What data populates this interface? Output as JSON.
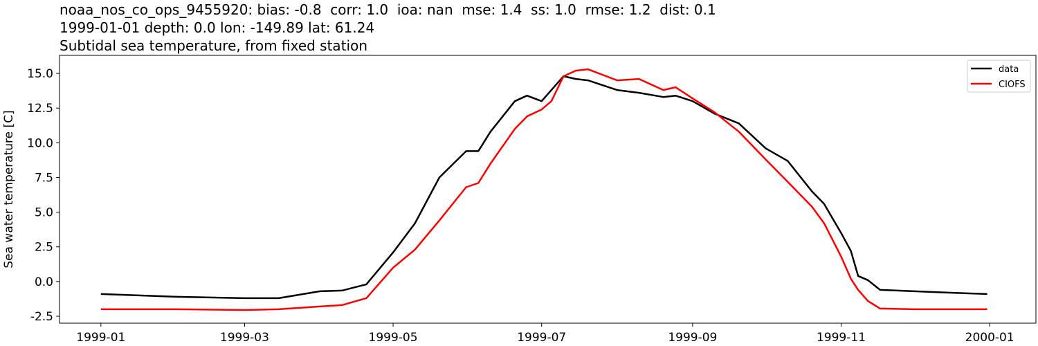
{
  "chart_data": {
    "type": "line",
    "title_lines": [
      "noaa_nos_co_ops_9455920: bias: -0.8  corr: 1.0  ioa: nan  mse: 1.4  ss: 1.0  rmse: 1.2  dist: 0.1",
      "1999-01-01 depth: 0.0 lon: -149.89 lat: 61.24",
      "Subtidal sea temperature, from fixed station"
    ],
    "xlabel": "",
    "ylabel": "Sea water temperature [C]",
    "xlim": [
      "1998-12-15",
      "2000-01-20"
    ],
    "ylim": [
      -3.0,
      16.3
    ],
    "xticks": [
      "1999-01",
      "1999-03",
      "1999-05",
      "1999-07",
      "1999-09",
      "1999-11",
      "2000-01"
    ],
    "yticks": [
      -2.5,
      0.0,
      2.5,
      5.0,
      7.5,
      10.0,
      12.5,
      15.0
    ],
    "grid": false,
    "legend_placement": "top-right",
    "x": [
      "1999-01-01",
      "1999-02-01",
      "1999-03-01",
      "1999-03-15",
      "1999-04-01",
      "1999-04-10",
      "1999-04-20",
      "1999-05-01",
      "1999-05-10",
      "1999-05-20",
      "1999-05-31",
      "1999-06-05",
      "1999-06-10",
      "1999-06-20",
      "1999-06-25",
      "1999-07-01",
      "1999-07-05",
      "1999-07-10",
      "1999-07-15",
      "1999-07-20",
      "1999-08-01",
      "1999-08-10",
      "1999-08-20",
      "1999-08-25",
      "1999-09-01",
      "1999-09-10",
      "1999-09-20",
      "1999-10-01",
      "1999-10-10",
      "1999-10-20",
      "1999-10-25",
      "1999-11-01",
      "1999-11-05",
      "1999-11-08",
      "1999-11-12",
      "1999-11-17",
      "1999-12-01",
      "1999-12-15",
      "1999-12-31"
    ],
    "series": [
      {
        "name": "data",
        "color": "#000000",
        "values": [
          -0.9,
          -1.1,
          -1.2,
          -1.2,
          -0.7,
          -0.65,
          -0.2,
          2.1,
          4.2,
          7.5,
          9.4,
          9.4,
          10.8,
          13.0,
          13.4,
          13.0,
          13.8,
          14.8,
          14.6,
          14.5,
          13.8,
          13.6,
          13.3,
          13.4,
          13.0,
          12.1,
          11.4,
          9.6,
          8.7,
          6.5,
          5.6,
          3.5,
          2.2,
          0.4,
          0.1,
          -0.6,
          -0.7,
          -0.8,
          -0.9
        ]
      },
      {
        "name": "CIOFS",
        "color": "#ff0000",
        "values": [
          -2.0,
          -2.0,
          -2.05,
          -2.0,
          -1.8,
          -1.7,
          -1.2,
          1.0,
          2.3,
          4.4,
          6.8,
          7.1,
          8.5,
          11.0,
          11.9,
          12.4,
          13.0,
          14.8,
          15.2,
          15.3,
          14.5,
          14.6,
          13.8,
          14.0,
          13.2,
          12.2,
          10.8,
          8.8,
          7.2,
          5.4,
          4.2,
          1.8,
          0.2,
          -0.6,
          -1.4,
          -1.95,
          -2.0,
          -2.0,
          -2.0
        ]
      }
    ]
  }
}
